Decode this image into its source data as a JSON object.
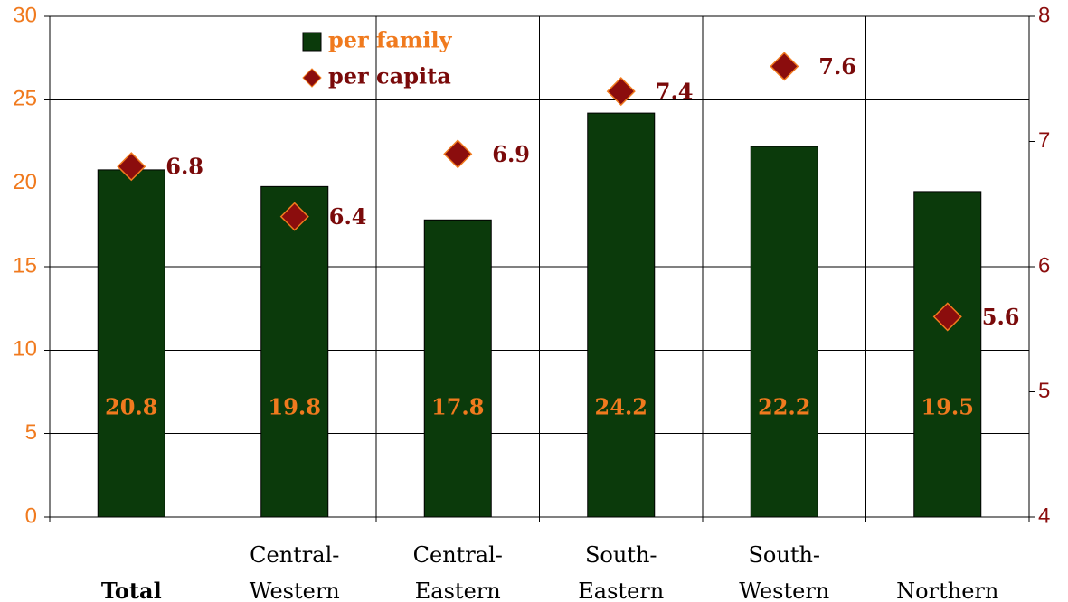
{
  "chart_data": {
    "type": "bar",
    "categories": [
      "Total",
      "Central-\nWestern",
      "Central-\nEastern",
      "South-\nEastern",
      "South-\nWestern",
      "Northern"
    ],
    "series": [
      {
        "name": "per family",
        "type": "bar",
        "color": "#0b3a0b",
        "label_color": "#f07a1e",
        "values": [
          20.8,
          19.8,
          17.8,
          24.2,
          22.2,
          19.5
        ]
      },
      {
        "name": "per capita",
        "type": "scatter",
        "axis": "y2",
        "color": "#8b0d0d",
        "label_color": "#7a0a0a",
        "values": [
          6.8,
          6.4,
          6.9,
          7.4,
          7.6,
          5.6
        ]
      }
    ],
    "ylim": [
      0,
      30
    ],
    "yticks": [
      0,
      5,
      10,
      15,
      20,
      25,
      30
    ],
    "y_color": "#f07a1e",
    "y2lim": [
      4,
      8
    ],
    "y2ticks": [
      4,
      5,
      6,
      7,
      8
    ],
    "y2_color": "#8b0d0d",
    "grid": true
  }
}
